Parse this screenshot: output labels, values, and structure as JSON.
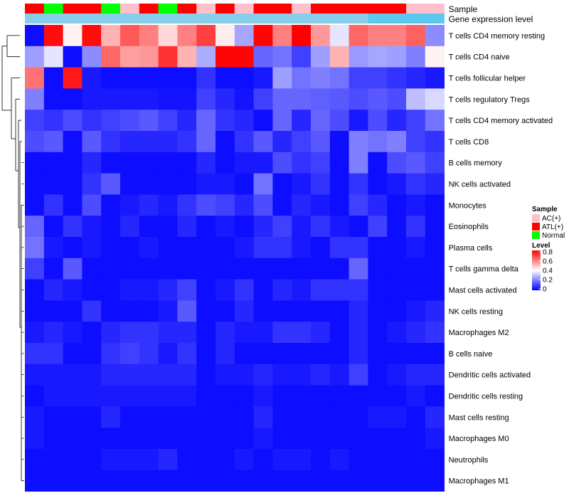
{
  "chart_data": {
    "type": "heatmap",
    "annotation_tracks": [
      {
        "name": "Sample",
        "values": [
          "ATL(+)",
          "Normal",
          "ATL(+)",
          "ATL(+)",
          "Normal",
          "AC(+)",
          "ATL(+)",
          "Normal",
          "ATL(+)",
          "AC(+)",
          "ATL(+)",
          "AC(+)",
          "ATL(+)",
          "ATL(+)",
          "AC(+)",
          "ATL(+)",
          "ATL(+)",
          "ATL(+)",
          "ATL(+)",
          "ATL(+)",
          "AC(+)",
          "AC(+)"
        ]
      },
      {
        "name": "Gene expression level",
        "values": [
          "low",
          "low",
          "low",
          "low",
          "low",
          "low",
          "low",
          "low",
          "low",
          "low",
          "low",
          "low",
          "low",
          "low",
          "low",
          "low",
          "low",
          "low",
          "high",
          "high",
          "high",
          "high"
        ]
      }
    ],
    "rows": [
      "T cells CD4 memory resting",
      "T cells CD4 naive",
      "T cells follicular helper",
      "T cells regulatory  Tregs",
      "T cells CD4 memory activated",
      "T cells CD8",
      "B cells memory",
      "NK cells activated",
      "Monocytes",
      "Eosinophils",
      "Plasma cells",
      "T cells gamma delta",
      "Mast cells activated",
      "NK cells resting",
      "Macrophages M2",
      "B cells naive",
      "Dendritic cells activated",
      "Dendritic cells resting",
      "Mast cells resting",
      "Macrophages M0",
      "Neutrophils",
      "Macrophages M1"
    ],
    "values": [
      [
        0.02,
        0.78,
        0.42,
        0.78,
        0.52,
        0.66,
        0.6,
        0.46,
        0.6,
        0.7,
        0.43,
        0.26,
        0.79,
        0.6,
        0.8,
        0.56,
        0.36,
        0.64,
        0.6,
        0.6,
        0.65,
        0.22
      ],
      [
        0.25,
        0.36,
        0.02,
        0.22,
        0.64,
        0.55,
        0.56,
        0.72,
        0.52,
        0.27,
        0.79,
        0.79,
        0.16,
        0.18,
        0.1,
        0.25,
        0.52,
        0.24,
        0.26,
        0.25,
        0.2,
        0.42
      ],
      [
        0.62,
        0.02,
        0.76,
        0.04,
        0.02,
        0.02,
        0.02,
        0.02,
        0.02,
        0.08,
        0.02,
        0.02,
        0.04,
        0.25,
        0.18,
        0.2,
        0.18,
        0.1,
        0.1,
        0.08,
        0.06,
        0.04
      ],
      [
        0.2,
        0.02,
        0.02,
        0.04,
        0.04,
        0.04,
        0.04,
        0.03,
        0.03,
        0.1,
        0.06,
        0.03,
        0.1,
        0.16,
        0.16,
        0.15,
        0.14,
        0.12,
        0.14,
        0.12,
        0.3,
        0.34
      ],
      [
        0.1,
        0.08,
        0.12,
        0.08,
        0.1,
        0.12,
        0.14,
        0.1,
        0.06,
        0.16,
        0.08,
        0.06,
        0.02,
        0.16,
        0.06,
        0.16,
        0.12,
        0.04,
        0.12,
        0.06,
        0.1,
        0.18
      ],
      [
        0.12,
        0.14,
        0.02,
        0.14,
        0.08,
        0.06,
        0.06,
        0.06,
        0.08,
        0.16,
        0.02,
        0.08,
        0.14,
        0.06,
        0.1,
        0.14,
        0.02,
        0.2,
        0.18,
        0.2,
        0.1,
        0.08
      ],
      [
        0.02,
        0.02,
        0.02,
        0.06,
        0.02,
        0.02,
        0.02,
        0.02,
        0.02,
        0.06,
        0.02,
        0.04,
        0.04,
        0.12,
        0.08,
        0.1,
        0.02,
        0.2,
        0.02,
        0.12,
        0.14,
        0.1
      ],
      [
        0.02,
        0.02,
        0.02,
        0.08,
        0.14,
        0.02,
        0.02,
        0.02,
        0.02,
        0.04,
        0.04,
        0.02,
        0.18,
        0.02,
        0.04,
        0.08,
        0.02,
        0.08,
        0.02,
        0.04,
        0.08,
        0.06
      ],
      [
        0.02,
        0.08,
        0.02,
        0.12,
        0.02,
        0.04,
        0.06,
        0.04,
        0.08,
        0.12,
        0.1,
        0.06,
        0.12,
        0.02,
        0.06,
        0.04,
        0.02,
        0.1,
        0.06,
        0.02,
        0.04,
        0.02
      ],
      [
        0.16,
        0.02,
        0.08,
        0.04,
        0.02,
        0.06,
        0.02,
        0.02,
        0.06,
        0.02,
        0.04,
        0.02,
        0.06,
        0.1,
        0.04,
        0.08,
        0.04,
        0.02,
        0.1,
        0.02,
        0.08,
        0.02
      ],
      [
        0.18,
        0.04,
        0.02,
        0.04,
        0.02,
        0.02,
        0.04,
        0.02,
        0.02,
        0.02,
        0.02,
        0.04,
        0.08,
        0.08,
        0.04,
        0.02,
        0.08,
        0.08,
        0.02,
        0.02,
        0.04,
        0.02
      ],
      [
        0.1,
        0.02,
        0.14,
        0.02,
        0.02,
        0.02,
        0.02,
        0.02,
        0.02,
        0.02,
        0.02,
        0.02,
        0.02,
        0.02,
        0.02,
        0.02,
        0.02,
        0.16,
        0.02,
        0.02,
        0.02,
        0.02
      ],
      [
        0.02,
        0.06,
        0.04,
        0.02,
        0.02,
        0.04,
        0.04,
        0.06,
        0.1,
        0.02,
        0.04,
        0.08,
        0.02,
        0.06,
        0.04,
        0.08,
        0.08,
        0.08,
        0.02,
        0.02,
        0.02,
        0.02
      ],
      [
        0.02,
        0.02,
        0.02,
        0.08,
        0.02,
        0.02,
        0.02,
        0.04,
        0.14,
        0.02,
        0.02,
        0.06,
        0.02,
        0.02,
        0.02,
        0.02,
        0.02,
        0.06,
        0.02,
        0.02,
        0.04,
        0.06
      ],
      [
        0.04,
        0.06,
        0.04,
        0.02,
        0.06,
        0.08,
        0.08,
        0.06,
        0.06,
        0.02,
        0.06,
        0.04,
        0.04,
        0.08,
        0.08,
        0.06,
        0.02,
        0.06,
        0.02,
        0.04,
        0.06,
        0.08
      ],
      [
        0.08,
        0.08,
        0.02,
        0.02,
        0.08,
        0.1,
        0.08,
        0.04,
        0.08,
        0.02,
        0.06,
        0.02,
        0.02,
        0.02,
        0.02,
        0.02,
        0.02,
        0.06,
        0.02,
        0.02,
        0.02,
        0.02
      ],
      [
        0.04,
        0.04,
        0.04,
        0.04,
        0.06,
        0.06,
        0.06,
        0.06,
        0.06,
        0.02,
        0.04,
        0.04,
        0.06,
        0.04,
        0.04,
        0.06,
        0.04,
        0.1,
        0.02,
        0.04,
        0.06,
        0.06
      ],
      [
        0.02,
        0.04,
        0.04,
        0.04,
        0.04,
        0.04,
        0.04,
        0.04,
        0.04,
        0.02,
        0.02,
        0.02,
        0.04,
        0.02,
        0.02,
        0.02,
        0.02,
        0.02,
        0.02,
        0.02,
        0.04,
        0.02
      ],
      [
        0.04,
        0.02,
        0.02,
        0.02,
        0.06,
        0.02,
        0.02,
        0.02,
        0.02,
        0.02,
        0.02,
        0.02,
        0.06,
        0.02,
        0.02,
        0.02,
        0.02,
        0.02,
        0.04,
        0.04,
        0.02,
        0.06
      ],
      [
        0.04,
        0.02,
        0.02,
        0.02,
        0.02,
        0.02,
        0.02,
        0.02,
        0.02,
        0.02,
        0.02,
        0.02,
        0.04,
        0.02,
        0.02,
        0.02,
        0.02,
        0.02,
        0.02,
        0.02,
        0.02,
        0.04
      ],
      [
        0.02,
        0.02,
        0.02,
        0.02,
        0.04,
        0.04,
        0.04,
        0.06,
        0.02,
        0.02,
        0.02,
        0.04,
        0.02,
        0.04,
        0.04,
        0.02,
        0.04,
        0.02,
        0.02,
        0.02,
        0.02,
        0.02
      ],
      [
        0.02,
        0.02,
        0.02,
        0.02,
        0.02,
        0.02,
        0.02,
        0.02,
        0.02,
        0.02,
        0.02,
        0.02,
        0.02,
        0.02,
        0.02,
        0.02,
        0.02,
        0.02,
        0.02,
        0.02,
        0.02,
        0.02
      ]
    ],
    "color_scale": {
      "low": "#0000FF",
      "mid": "#FFFFFF",
      "high": "#FF0000",
      "min": 0,
      "mid_value": 0.4,
      "max": 0.8
    },
    "legends": {
      "sample": {
        "title": "Sample",
        "entries": [
          {
            "label": "AC(+)",
            "color": "#FFC0CB"
          },
          {
            "label": "ATL(+)",
            "color": "#FF0000"
          },
          {
            "label": "Normal",
            "color": "#00FF00"
          }
        ]
      },
      "level": {
        "title": "Level",
        "ticks": [
          "0.8",
          "0.6",
          "0.4",
          "0.2",
          "0"
        ]
      }
    },
    "annotation_colors": {
      "Sample": {
        "AC(+)": "#FFC0CB",
        "ATL(+)": "#FF0000",
        "Normal": "#00FF00"
      },
      "Gene expression level": {
        "low": "#87CEEB",
        "high": "#5BC8F0"
      }
    }
  }
}
